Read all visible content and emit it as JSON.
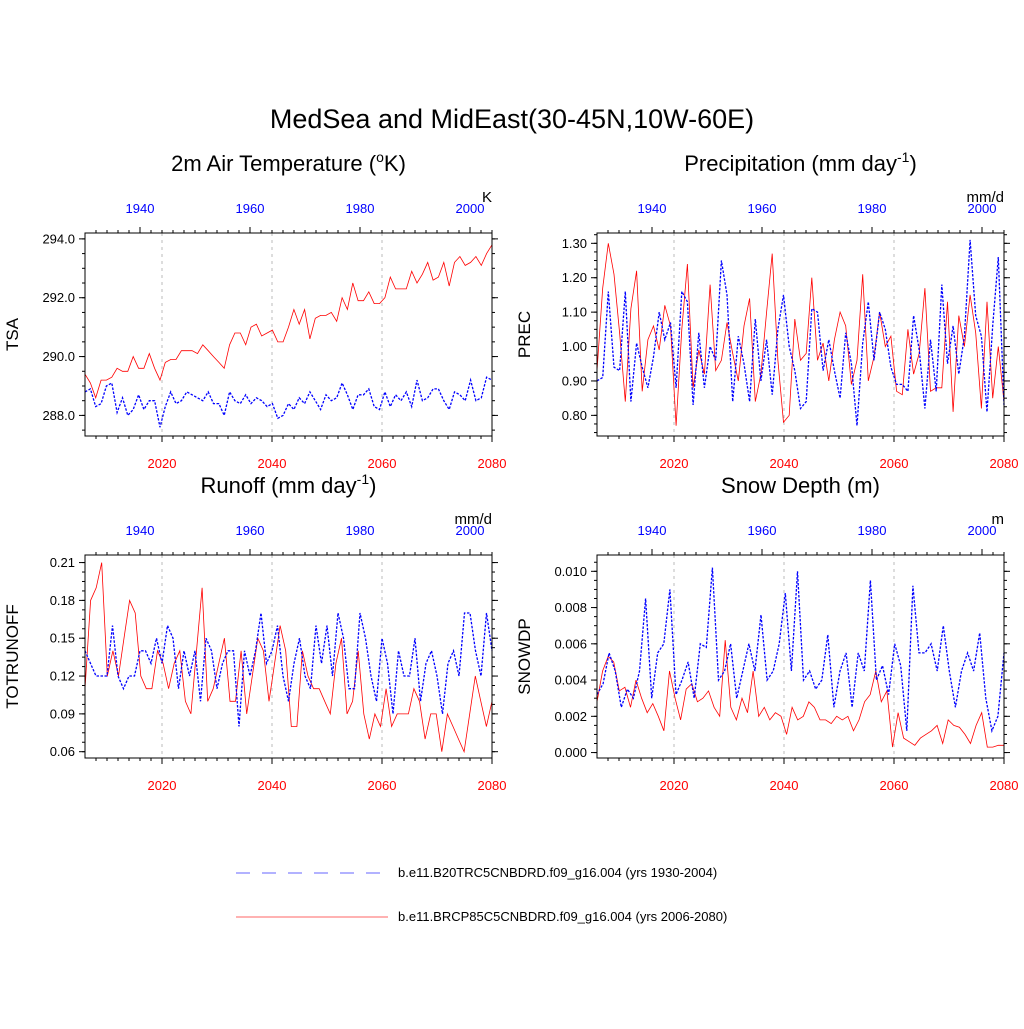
{
  "title": "MedSea and MidEast(30-45N,10W-60E)",
  "colors": {
    "rcp": "#ff0000",
    "hist": "#0000ff",
    "axis": "#000000",
    "grid": "#bbbbbb"
  },
  "legend": {
    "hist_label": "b.e11.B20TRC5CNBDRD.f09_g16.004 (yrs 1930-2004)",
    "rcp_label": "b.e11.BRCP85C5CNBDRD.f09_g16.004 (yrs 2006-2080)"
  },
  "chart_data": [
    {
      "id": "tsa",
      "type": "line",
      "title_main": "2m Air Temperature (",
      "title_sup": "o",
      "title_tail": "K)",
      "ylabel": "TSA",
      "units": "K",
      "ylim": [
        287.3,
        294.2
      ],
      "yticks": [
        288.0,
        290.0,
        292.0,
        294.0
      ],
      "ydec": 1,
      "xlim": [
        2006,
        2080
      ],
      "xticks_bottom": [
        2020,
        2040,
        2060,
        2080
      ],
      "xticks_top": [
        1940,
        1960,
        1980,
        2000
      ],
      "top_offset": 76,
      "grid_x": [
        2020,
        2040,
        2060
      ],
      "series": [
        {
          "name": "b.e11.BRCP85C5CNBDRD.f09_g16.004",
          "style": "solid",
          "values": [
            289.4,
            289.1,
            288.6,
            289.2,
            289.2,
            289.3,
            289.6,
            289.5,
            289.5,
            290.0,
            289.6,
            289.6,
            290.1,
            289.6,
            289.2,
            289.8,
            289.9,
            289.9,
            290.2,
            290.2,
            290.2,
            290.1,
            290.4,
            290.2,
            290.0,
            289.8,
            289.6,
            290.4,
            290.8,
            290.8,
            290.4,
            291.0,
            291.1,
            290.7,
            290.8,
            290.9,
            290.5,
            290.5,
            291.0,
            291.6,
            291.1,
            291.6,
            290.6,
            291.3,
            291.4,
            291.4,
            291.5,
            291.2,
            292.0,
            291.6,
            292.5,
            291.9,
            291.9,
            292.2,
            291.8,
            291.8,
            292.0,
            292.7,
            292.3,
            292.3,
            292.3,
            292.9,
            292.5,
            292.8,
            293.2,
            292.6,
            292.7,
            293.2,
            292.4,
            293.2,
            293.4,
            293.1,
            293.2,
            293.4,
            293.1,
            293.5,
            293.8
          ]
        },
        {
          "name": "b.e11.B20TRC5CNBDRD.f09_g16.004",
          "style": "dashed",
          "values": [
            288.8,
            288.9,
            288.3,
            288.4,
            289.0,
            289.1,
            288.1,
            288.6,
            288.0,
            288.2,
            288.7,
            288.2,
            288.5,
            288.5,
            287.6,
            288.3,
            288.8,
            288.4,
            288.5,
            288.8,
            288.7,
            288.6,
            288.5,
            288.8,
            288.4,
            288.4,
            288.0,
            288.8,
            288.5,
            288.4,
            288.7,
            288.4,
            288.6,
            288.5,
            288.3,
            288.4,
            287.9,
            288.0,
            288.4,
            288.2,
            288.6,
            288.4,
            288.8,
            288.5,
            288.2,
            288.7,
            288.5,
            288.6,
            289.1,
            288.7,
            288.2,
            288.7,
            288.7,
            288.9,
            288.3,
            288.2,
            288.8,
            288.3,
            288.7,
            288.5,
            288.8,
            288.3,
            289.2,
            288.5,
            288.6,
            288.9,
            288.9,
            288.5,
            288.2,
            288.8,
            288.7,
            288.5,
            289.2,
            288.5,
            288.6,
            289.3,
            289.2
          ]
        }
      ]
    },
    {
      "id": "prec",
      "type": "line",
      "title_main": "Precipitation (mm day",
      "title_sup": "-1",
      "title_tail": ")",
      "ylabel": "PREC",
      "units": "mm/d",
      "ylim": [
        0.74,
        1.33
      ],
      "yticks": [
        0.8,
        0.9,
        1.0,
        1.1,
        1.2,
        1.3
      ],
      "ydec": 2,
      "xlim": [
        2006,
        2080
      ],
      "xticks_bottom": [
        2020,
        2040,
        2060,
        2080
      ],
      "xticks_top": [
        1940,
        1960,
        1980,
        2000
      ],
      "top_offset": 76,
      "grid_x": [
        2020,
        2040,
        2060
      ],
      "series": [
        {
          "name": "b.e11.BRCP85C5CNBDRD.f09_g16.004",
          "style": "solid",
          "values": [
            0.93,
            1.17,
            1.3,
            1.21,
            1.04,
            0.84,
            1.11,
            1.22,
            0.87,
            1.02,
            1.06,
            0.99,
            1.12,
            1.06,
            0.77,
            1.05,
            1.24,
            0.88,
            0.99,
            0.92,
            1.18,
            0.93,
            0.96,
            1.07,
            0.98,
            0.9,
            1.06,
            1.14,
            0.84,
            0.92,
            1.1,
            1.27,
            0.96,
            0.78,
            0.8,
            1.08,
            0.96,
            0.98,
            1.2,
            0.96,
            1.01,
            0.9,
            1.02,
            1.1,
            1.06,
            0.89,
            0.96,
            1.21,
            0.9,
            0.97,
            1.1,
            1.0,
            1.03,
            0.87,
            0.86,
            1.05,
            0.92,
            0.98,
            1.17,
            0.87,
            0.88,
            0.88,
            1.13,
            0.81,
            1.09,
            1.0,
            1.15,
            1.04,
            0.82,
            1.13,
            0.85,
            1.0,
            0.84
          ]
        },
        {
          "name": "b.e11.B20TRC5CNBDRD.f09_g16.004",
          "style": "dashed",
          "values": [
            0.9,
            0.91,
            1.16,
            0.94,
            0.93,
            1.16,
            0.84,
            1.01,
            0.94,
            0.88,
            0.97,
            1.1,
            1.02,
            1.07,
            0.88,
            1.16,
            1.13,
            0.83,
            1.04,
            0.88,
            1.0,
            0.96,
            1.25,
            1.15,
            0.84,
            1.03,
            0.95,
            0.84,
            1.08,
            0.9,
            1.02,
            0.86,
            1.05,
            1.15,
            1.0,
            0.93,
            0.82,
            0.84,
            1.11,
            1.1,
            0.93,
            1.02,
            0.93,
            0.85,
            1.04,
            0.95,
            0.77,
            1.01,
            1.13,
            0.96,
            1.1,
            1.05,
            0.94,
            0.89,
            0.89,
            0.87,
            1.09,
            0.99,
            0.82,
            1.02,
            0.87,
            1.18,
            0.95,
            1.06,
            0.92,
            1.03,
            1.31,
            1.09,
            1.03,
            0.81,
            1.06,
            1.26,
            0.83
          ]
        }
      ]
    },
    {
      "id": "runoff",
      "type": "line",
      "title_main": "Runoff (mm day",
      "title_sup": "-1",
      "title_tail": ")",
      "ylabel": "TOTRUNOFF",
      "units": "mm/d",
      "ylim": [
        0.055,
        0.216
      ],
      "yticks": [
        0.06,
        0.09,
        0.12,
        0.15,
        0.18,
        0.21
      ],
      "ydec": 2,
      "xlim": [
        2006,
        2080
      ],
      "xticks_bottom": [
        2020,
        2040,
        2060,
        2080
      ],
      "xticks_top": [
        1940,
        1960,
        1980,
        2000
      ],
      "top_offset": 76,
      "grid_x": [
        2020,
        2040,
        2060
      ],
      "series": [
        {
          "name": "b.e11.BRCP85C5CNBDRD.f09_g16.004",
          "style": "solid",
          "values": [
            0.11,
            0.18,
            0.19,
            0.21,
            0.12,
            0.14,
            0.12,
            0.15,
            0.18,
            0.17,
            0.12,
            0.11,
            0.11,
            0.14,
            0.13,
            0.11,
            0.13,
            0.14,
            0.1,
            0.09,
            0.14,
            0.19,
            0.1,
            0.11,
            0.13,
            0.15,
            0.1,
            0.1,
            0.14,
            0.09,
            0.12,
            0.15,
            0.14,
            0.1,
            0.13,
            0.16,
            0.14,
            0.08,
            0.08,
            0.14,
            0.12,
            0.11,
            0.11,
            0.1,
            0.09,
            0.13,
            0.15,
            0.09,
            0.1,
            0.14,
            0.09,
            0.07,
            0.09,
            0.08,
            0.11,
            0.08,
            0.09,
            0.09,
            0.09,
            0.11,
            0.1,
            0.07,
            0.09,
            0.09,
            0.06,
            0.09,
            0.08,
            0.07,
            0.06,
            0.09,
            0.12,
            0.1,
            0.08,
            0.1
          ]
        },
        {
          "name": "b.e11.B20TRC5CNBDRD.f09_g16.004",
          "style": "dashed",
          "values": [
            0.14,
            0.13,
            0.12,
            0.12,
            0.12,
            0.16,
            0.12,
            0.11,
            0.12,
            0.12,
            0.14,
            0.14,
            0.13,
            0.15,
            0.13,
            0.16,
            0.15,
            0.11,
            0.14,
            0.12,
            0.14,
            0.1,
            0.15,
            0.14,
            0.11,
            0.13,
            0.14,
            0.14,
            0.08,
            0.14,
            0.12,
            0.14,
            0.17,
            0.13,
            0.14,
            0.16,
            0.12,
            0.1,
            0.13,
            0.15,
            0.12,
            0.11,
            0.16,
            0.13,
            0.16,
            0.12,
            0.17,
            0.15,
            0.11,
            0.11,
            0.17,
            0.15,
            0.12,
            0.1,
            0.15,
            0.13,
            0.09,
            0.14,
            0.12,
            0.12,
            0.15,
            0.1,
            0.13,
            0.14,
            0.12,
            0.09,
            0.13,
            0.14,
            0.12,
            0.17,
            0.17,
            0.14,
            0.12,
            0.17,
            0.14
          ]
        }
      ]
    },
    {
      "id": "snow",
      "type": "line",
      "title_main": "Snow Depth (m)",
      "title_sup": "",
      "title_tail": "",
      "ylabel": "SNOWDP",
      "units": "m",
      "ylim": [
        -0.0003,
        0.0109
      ],
      "yticks": [
        0.0,
        0.002,
        0.004,
        0.006,
        0.008,
        0.01
      ],
      "ydec": 3,
      "xlim": [
        2006,
        2080
      ],
      "xticks_bottom": [
        2020,
        2040,
        2060,
        2080
      ],
      "xticks_top": [
        1940,
        1960,
        1980,
        2000
      ],
      "top_offset": 76,
      "grid_x": [
        2020,
        2040,
        2060
      ],
      "series": [
        {
          "name": "b.e11.BRCP85C5CNBDRD.f09_g16.004",
          "style": "solid",
          "values": [
            0.0028,
            0.0045,
            0.0053,
            0.005,
            0.0034,
            0.0036,
            0.0025,
            0.004,
            0.003,
            0.0022,
            0.0027,
            0.002,
            0.0012,
            0.0045,
            0.003,
            0.0018,
            0.0035,
            0.0038,
            0.0028,
            0.003,
            0.0034,
            0.0025,
            0.002,
            0.0062,
            0.0025,
            0.0018,
            0.003,
            0.0022,
            0.0045,
            0.002,
            0.0025,
            0.0018,
            0.0022,
            0.002,
            0.001,
            0.0025,
            0.0018,
            0.002,
            0.0028,
            0.0025,
            0.0018,
            0.0018,
            0.0016,
            0.002,
            0.0018,
            0.002,
            0.0012,
            0.0018,
            0.0028,
            0.0032,
            0.0045,
            0.0028,
            0.0034,
            0.0003,
            0.0022,
            0.0008,
            0.0006,
            0.0004,
            0.0008,
            0.001,
            0.0012,
            0.0015,
            0.0005,
            0.0018,
            0.0015,
            0.0014,
            0.001,
            0.0005,
            0.0015,
            0.0022,
            0.0003,
            0.0003,
            0.0004,
            0.0004
          ]
        },
        {
          "name": "b.e11.B20TRC5CNBDRD.f09_g16.004",
          "style": "dashed",
          "values": [
            0.0032,
            0.0038,
            0.0055,
            0.0045,
            0.0025,
            0.0035,
            0.003,
            0.0045,
            0.0085,
            0.003,
            0.0055,
            0.006,
            0.009,
            0.0032,
            0.004,
            0.005,
            0.003,
            0.006,
            0.0058,
            0.0102,
            0.004,
            0.0045,
            0.006,
            0.003,
            0.0045,
            0.006,
            0.0045,
            0.0076,
            0.004,
            0.0045,
            0.006,
            0.0088,
            0.0045,
            0.01,
            0.004,
            0.0045,
            0.0035,
            0.004,
            0.0065,
            0.0025,
            0.0045,
            0.0055,
            0.0025,
            0.0055,
            0.0045,
            0.0095,
            0.004,
            0.0048,
            0.0032,
            0.006,
            0.0048,
            0.0012,
            0.0092,
            0.0055,
            0.0055,
            0.006,
            0.0045,
            0.007,
            0.0045,
            0.0025,
            0.0045,
            0.0055,
            0.0045,
            0.0066,
            0.003,
            0.0012,
            0.002,
            0.0055
          ]
        }
      ]
    }
  ]
}
